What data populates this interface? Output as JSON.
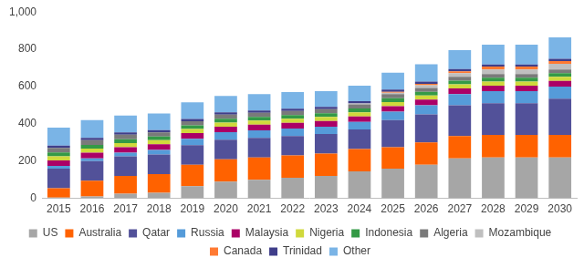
{
  "chart_data": {
    "type": "bar",
    "stacked": true,
    "grid": false,
    "legend": "bottom",
    "categories": [
      "2015",
      "2016",
      "2017",
      "2018",
      "2019",
      "2020",
      "2021",
      "2022",
      "2023",
      "2024",
      "2025",
      "2026",
      "2027",
      "2028",
      "2029",
      "2030"
    ],
    "ylim": [
      0,
      1000
    ],
    "yticks": [
      0,
      200,
      400,
      600,
      800,
      1000
    ],
    "series": [
      {
        "name": "US",
        "color": "#a6a6a6",
        "values": [
          4,
          10,
          25,
          30,
          65,
          90,
          100,
          110,
          120,
          145,
          160,
          180,
          215,
          220,
          220,
          220
        ]
      },
      {
        "name": "Australia",
        "color": "#ff6200",
        "values": [
          50,
          85,
          95,
          100,
          115,
          120,
          120,
          120,
          120,
          120,
          115,
          120,
          120,
          120,
          120,
          120
        ]
      },
      {
        "name": "Qatar",
        "color": "#525199",
        "values": [
          105,
          105,
          105,
          105,
          105,
          105,
          105,
          105,
          105,
          105,
          145,
          150,
          165,
          170,
          170,
          195
        ]
      },
      {
        "name": "Russia",
        "color": "#559bd9",
        "values": [
          15,
          15,
          20,
          25,
          35,
          40,
          40,
          40,
          40,
          40,
          45,
          50,
          60,
          65,
          65,
          65
        ]
      },
      {
        "name": "Malaysia",
        "color": "#ab0066",
        "values": [
          30,
          30,
          30,
          30,
          30,
          30,
          30,
          30,
          30,
          30,
          30,
          30,
          30,
          30,
          30,
          30
        ]
      },
      {
        "name": "Nigeria",
        "color": "#d0d93c",
        "values": [
          22,
          22,
          22,
          22,
          22,
          22,
          22,
          22,
          22,
          22,
          22,
          22,
          22,
          22,
          22,
          22
        ]
      },
      {
        "name": "Indonesia",
        "color": "#349a46",
        "values": [
          20,
          20,
          20,
          20,
          20,
          20,
          20,
          20,
          20,
          20,
          20,
          20,
          20,
          20,
          20,
          20
        ]
      },
      {
        "name": "Algeria",
        "color": "#7a7a7a",
        "values": [
          25,
          25,
          25,
          22,
          22,
          22,
          22,
          22,
          22,
          22,
          22,
          20,
          20,
          20,
          20,
          20
        ]
      },
      {
        "name": "Mozambique",
        "color": "#bfbfbf",
        "values": [
          0,
          0,
          0,
          0,
          0,
          0,
          0,
          0,
          0,
          5,
          8,
          15,
          20,
          25,
          25,
          30
        ]
      },
      {
        "name": "Canada",
        "color": "#ff7a33",
        "values": [
          0,
          0,
          0,
          0,
          0,
          0,
          0,
          0,
          0,
          0,
          5,
          8,
          10,
          15,
          15,
          15
        ]
      },
      {
        "name": "Trinidad",
        "color": "#3f3e8a",
        "values": [
          12,
          12,
          12,
          12,
          12,
          12,
          12,
          12,
          12,
          12,
          12,
          12,
          12,
          12,
          12,
          12
        ]
      },
      {
        "name": "Other",
        "color": "#7ab4e6",
        "values": [
          97,
          96,
          91,
          89,
          89,
          89,
          89,
          89,
          84,
          84,
          90,
          93,
          101,
          106,
          106,
          115
        ]
      }
    ]
  }
}
